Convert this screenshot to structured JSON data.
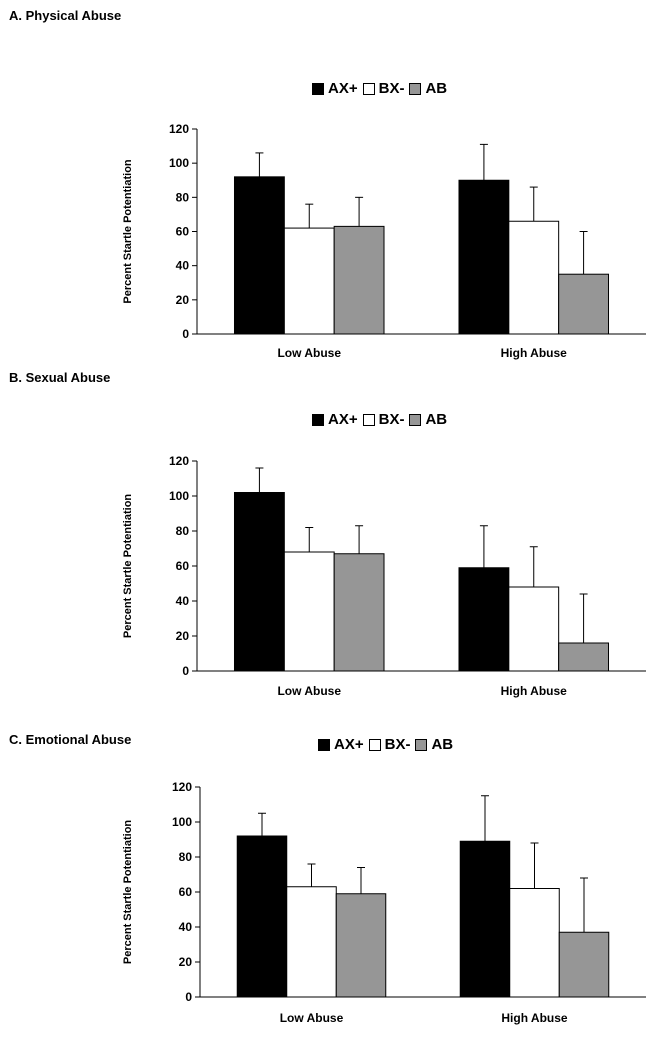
{
  "colors": {
    "AX+": "#000000",
    "BX-": "#ffffff",
    "AB": "#969696"
  },
  "chart_data": [
    {
      "type": "bar",
      "title": "A. Physical Abuse",
      "categories": [
        "Low Abuse",
        "High Abuse"
      ],
      "series": [
        {
          "name": "AX+",
          "values": [
            92,
            90
          ],
          "errors": [
            14,
            21
          ]
        },
        {
          "name": "BX-",
          "values": [
            62,
            66
          ],
          "errors": [
            14,
            20
          ]
        },
        {
          "name": "AB",
          "values": [
            63,
            35
          ],
          "errors": [
            17,
            25
          ]
        }
      ],
      "xlabel": "",
      "ylabel": "Percent Startle Potentiation",
      "ylim": [
        0,
        120
      ],
      "yticks": [
        0,
        20,
        40,
        60,
        80,
        100,
        120
      ],
      "legend": "top-center"
    },
    {
      "type": "bar",
      "title": "B. Sexual Abuse",
      "categories": [
        "Low Abuse",
        "High Abuse"
      ],
      "series": [
        {
          "name": "AX+",
          "values": [
            102,
            59
          ],
          "errors": [
            14,
            24
          ]
        },
        {
          "name": "BX-",
          "values": [
            68,
            48
          ],
          "errors": [
            14,
            23
          ]
        },
        {
          "name": "AB",
          "values": [
            67,
            16
          ],
          "errors": [
            16,
            28
          ]
        }
      ],
      "xlabel": "",
      "ylabel": "Percent Startle Potentiation",
      "ylim": [
        0,
        120
      ],
      "yticks": [
        0,
        20,
        40,
        60,
        80,
        100,
        120
      ],
      "legend": "top-center"
    },
    {
      "type": "bar",
      "title": "C. Emotional Abuse",
      "categories": [
        "Low Abuse",
        "High Abuse"
      ],
      "series": [
        {
          "name": "AX+",
          "values": [
            92,
            89
          ],
          "errors": [
            13,
            26
          ]
        },
        {
          "name": "BX-",
          "values": [
            63,
            62
          ],
          "errors": [
            13,
            26
          ]
        },
        {
          "name": "AB",
          "values": [
            59,
            37
          ],
          "errors": [
            15,
            31
          ]
        }
      ],
      "xlabel": "",
      "ylabel": "Percent Startle Potentiation",
      "ylim": [
        0,
        120
      ],
      "yticks": [
        0,
        20,
        40,
        60,
        80,
        100,
        120
      ],
      "legend": "top-center"
    }
  ]
}
